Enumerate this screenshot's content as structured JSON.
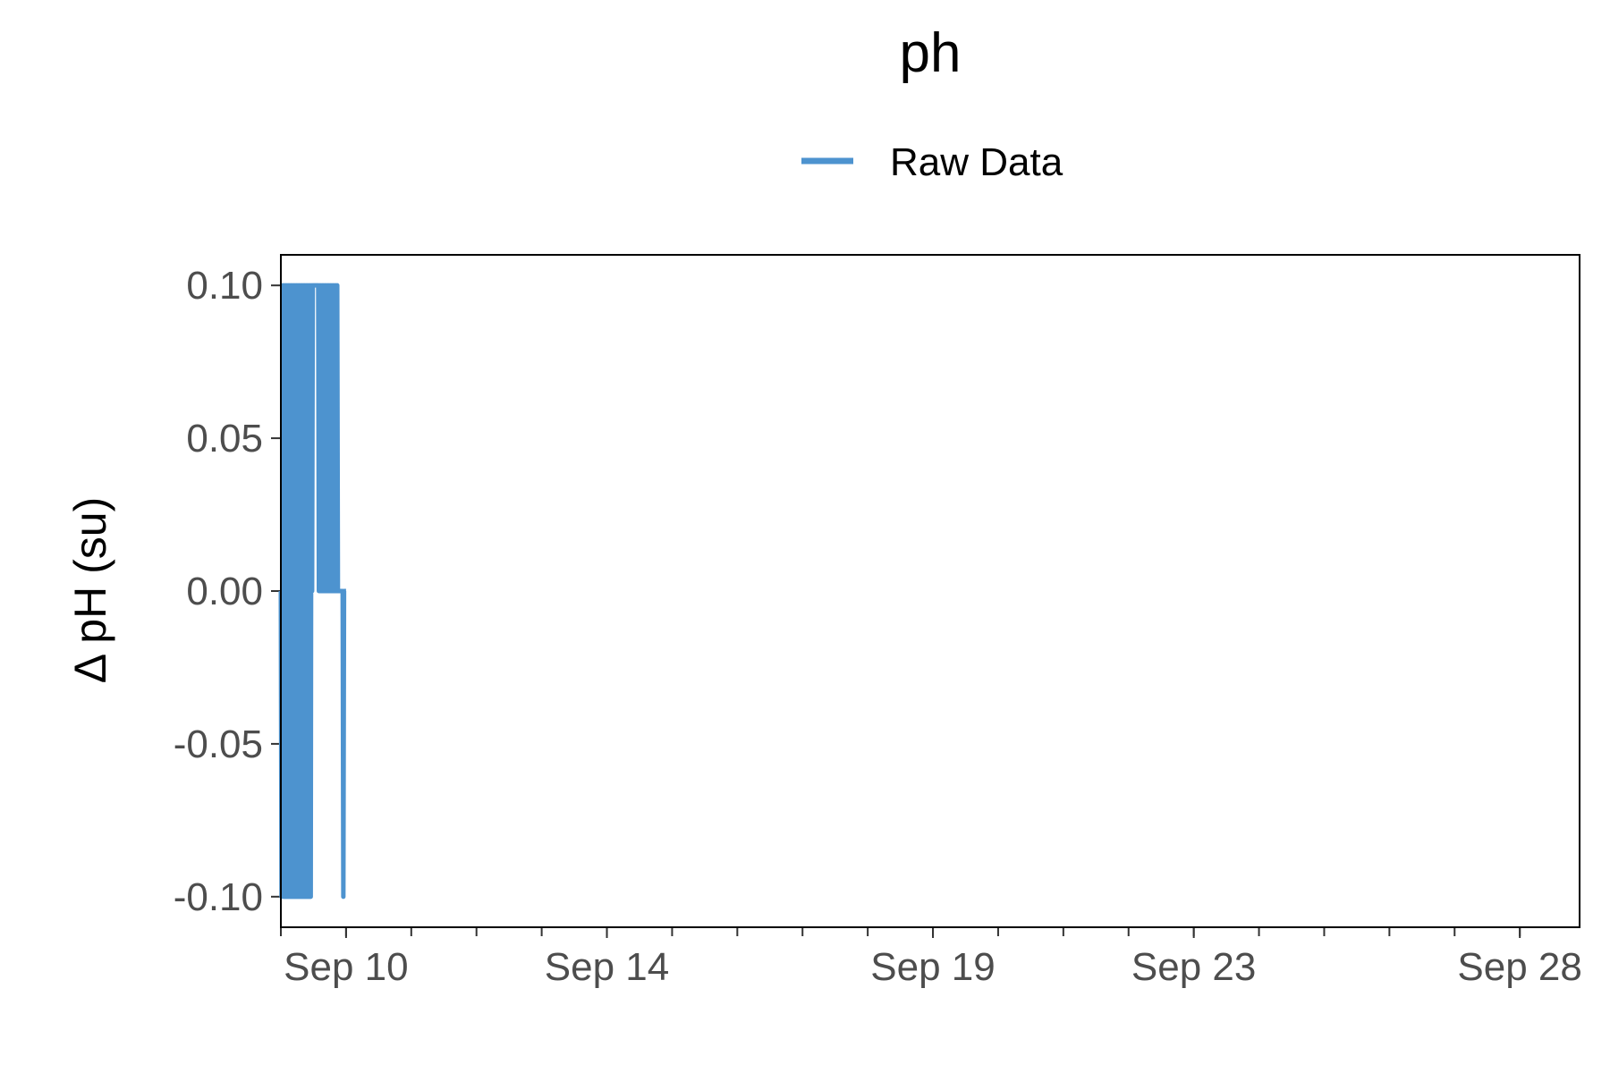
{
  "chart_data": {
    "type": "line",
    "title": "ph",
    "xlabel": "",
    "ylabel": "Δ pH (su)",
    "legend": {
      "position": "top",
      "entries": [
        {
          "name": "Raw Data",
          "color": "#4d93cf"
        }
      ]
    },
    "grid": false,
    "x_type": "date",
    "xlim": [
      "2023-09-09T00:00",
      "2023-09-28T22:00"
    ],
    "ylim": [
      -0.11,
      0.11
    ],
    "x_ticks": [
      {
        "date": "2023-09-10T00:00",
        "label": "Sep 10"
      },
      {
        "date": "2023-09-14T00:00",
        "label": "Sep 14"
      },
      {
        "date": "2023-09-19T00:00",
        "label": "Sep 19"
      },
      {
        "date": "2023-09-23T00:00",
        "label": "Sep 23"
      },
      {
        "date": "2023-09-28T00:00",
        "label": "Sep 28"
      }
    ],
    "y_ticks": [
      {
        "value": 0.1,
        "label": "0.10"
      },
      {
        "value": 0.05,
        "label": "0.05"
      },
      {
        "value": 0.0,
        "label": "0.00"
      },
      {
        "value": -0.05,
        "label": "-0.05"
      },
      {
        "value": -0.1,
        "label": "-0.10"
      }
    ],
    "series": [
      {
        "name": "Raw Data",
        "color": "#4d93cf",
        "x": [
          "2023-09-09T00:00",
          "2023-09-09T00:15",
          "2023-09-09T00:30",
          "2023-09-09T00:45",
          "2023-09-09T01:00",
          "2023-09-09T01:15",
          "2023-09-09T01:30",
          "2023-09-09T01:45",
          "2023-09-09T02:00",
          "2023-09-09T02:15",
          "2023-09-09T02:30",
          "2023-09-09T02:45",
          "2023-09-09T03:00",
          "2023-09-09T03:15",
          "2023-09-09T03:30",
          "2023-09-09T03:45",
          "2023-09-09T04:00",
          "2023-09-09T04:15",
          "2023-09-09T04:30",
          "2023-09-09T04:45",
          "2023-09-09T05:00",
          "2023-09-09T05:15",
          "2023-09-09T05:30",
          "2023-09-09T05:45",
          "2023-09-09T06:00",
          "2023-09-09T06:15",
          "2023-09-09T06:30",
          "2023-09-09T06:45",
          "2023-09-09T07:00",
          "2023-09-09T07:15",
          "2023-09-09T07:30",
          "2023-09-09T07:45",
          "2023-09-09T08:00",
          "2023-09-09T08:15",
          "2023-09-09T08:30",
          "2023-09-09T08:45",
          "2023-09-09T09:00",
          "2023-09-09T09:15",
          "2023-09-09T09:30",
          "2023-09-09T09:45",
          "2023-09-09T10:00",
          "2023-09-09T10:15",
          "2023-09-09T10:30",
          "2023-09-09T10:45",
          "2023-09-09T11:00",
          "2023-09-09T11:15",
          "2023-09-09T11:30",
          "2023-09-09T11:45",
          "2023-09-09T12:00",
          "2023-09-09T12:15",
          "2023-09-09T12:30",
          "2023-09-09T12:45",
          "2023-09-09T13:00",
          "2023-09-09T13:15",
          "2023-09-09T13:30",
          "2023-09-09T13:45",
          "2023-09-09T14:00",
          "2023-09-09T14:15",
          "2023-09-09T14:30",
          "2023-09-09T14:45",
          "2023-09-09T15:00",
          "2023-09-09T15:15",
          "2023-09-09T15:30",
          "2023-09-09T15:45",
          "2023-09-09T16:00",
          "2023-09-09T16:15",
          "2023-09-09T16:30",
          "2023-09-09T16:45",
          "2023-09-09T17:00",
          "2023-09-09T17:15",
          "2023-09-09T17:30",
          "2023-09-09T17:45",
          "2023-09-09T18:00",
          "2023-09-09T18:15",
          "2023-09-09T18:30",
          "2023-09-09T18:45",
          "2023-09-09T19:00",
          "2023-09-09T19:15",
          "2023-09-09T19:30",
          "2023-09-09T19:45",
          "2023-09-09T20:00",
          "2023-09-09T20:15",
          "2023-09-09T20:30",
          "2023-09-09T20:45",
          "2023-09-09T21:00",
          "2023-09-09T21:15",
          "2023-09-09T21:30",
          "2023-09-09T21:45",
          "2023-09-09T22:00",
          "2023-09-09T22:15",
          "2023-09-09T22:30",
          "2023-09-09T22:45",
          "2023-09-09T23:00",
          "2023-09-09T23:15",
          "2023-09-09T23:30",
          "2023-09-09T23:45",
          "2023-09-10T00:00"
        ],
        "y": [
          0,
          -0.1,
          0,
          0.1,
          -0.1,
          0.1,
          -0.1,
          0.1,
          -0.1,
          0.1,
          -0.1,
          0.1,
          -0.1,
          0.1,
          -0.1,
          0.1,
          -0.1,
          0.1,
          -0.1,
          0.1,
          -0.1,
          0.1,
          -0.1,
          0.1,
          -0.1,
          0.1,
          -0.1,
          0.1,
          -0.1,
          0.1,
          -0.1,
          0.1,
          -0.1,
          0.1,
          -0.1,
          0.1,
          -0.1,
          0.1,
          -0.1,
          0.1,
          -0.1,
          0.1,
          -0.1,
          0.1,
          -0.1,
          0.1,
          0,
          0.1,
          0.1,
          0.1,
          0.1,
          0.1,
          0.1,
          0.1,
          0.1,
          0.1,
          0,
          0.1,
          0,
          0.1,
          0,
          0.1,
          0,
          0.1,
          0,
          0.1,
          0,
          0.1,
          0,
          0.1,
          0,
          0.1,
          0,
          0.1,
          0,
          0.1,
          0,
          0.1,
          0,
          0.1,
          0,
          0.1,
          0,
          0.1,
          0,
          0,
          0,
          0,
          0,
          0,
          0,
          0,
          -0.1,
          0,
          0,
          0,
          0
        ]
      }
    ]
  }
}
